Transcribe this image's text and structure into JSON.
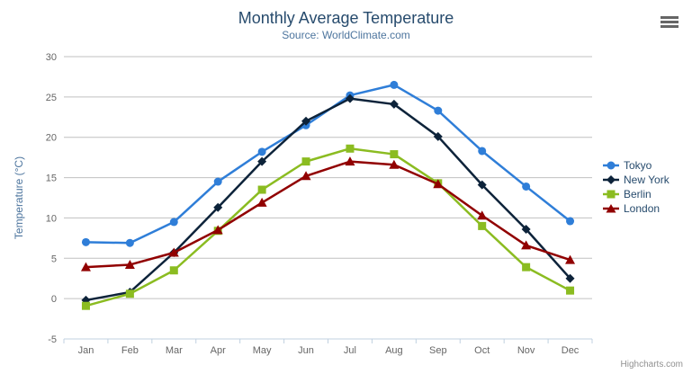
{
  "header": {
    "title": "Monthly Average Temperature",
    "subtitle": "Source: WorldClimate.com"
  },
  "credits": {
    "label": "Highcharts.com"
  },
  "export_menu": {
    "icon": "hamburger-menu-icon"
  },
  "colors": {
    "title": "#274b6d",
    "subtitle": "#4d759e",
    "axis_title": "#4d759e",
    "axis_labels": "#666666",
    "grid_line": "#c0c0c0",
    "axis_line": "#c0d0e0",
    "legend_text": "#274b6d",
    "background": "#ffffff",
    "credits_text": "#909090",
    "menu_icon": "#666666"
  },
  "chart_data": {
    "type": "line",
    "title": "Monthly Average Temperature",
    "subtitle": "Source: WorldClimate.com",
    "xlabel": "",
    "ylabel": "Temperature (°C)",
    "categories": [
      "Jan",
      "Feb",
      "Mar",
      "Apr",
      "May",
      "Jun",
      "Jul",
      "Aug",
      "Sep",
      "Oct",
      "Nov",
      "Dec"
    ],
    "ylim": [
      -5,
      30
    ],
    "y_ticks": [
      -5,
      0,
      5,
      10,
      15,
      20,
      25,
      30
    ],
    "grid": true,
    "legend_position": "right",
    "series": [
      {
        "name": "Tokyo",
        "color": "#2f7ed8",
        "marker": "circle",
        "values": [
          7.0,
          6.9,
          9.5,
          14.5,
          18.2,
          21.5,
          25.2,
          26.5,
          23.3,
          18.3,
          13.9,
          9.6
        ]
      },
      {
        "name": "New York",
        "color": "#0d233a",
        "marker": "diamond",
        "values": [
          -0.2,
          0.8,
          5.7,
          11.3,
          17.0,
          22.0,
          24.8,
          24.1,
          20.1,
          14.1,
          8.6,
          2.5
        ]
      },
      {
        "name": "Berlin",
        "color": "#8bbc21",
        "marker": "square",
        "values": [
          -0.9,
          0.6,
          3.5,
          8.4,
          13.5,
          17.0,
          18.6,
          17.9,
          14.3,
          9.0,
          3.9,
          1.0
        ]
      },
      {
        "name": "London",
        "color": "#910000",
        "marker": "triangle",
        "values": [
          3.9,
          4.2,
          5.7,
          8.5,
          11.9,
          15.2,
          17.0,
          16.6,
          14.2,
          10.3,
          6.6,
          4.8
        ]
      }
    ]
  }
}
